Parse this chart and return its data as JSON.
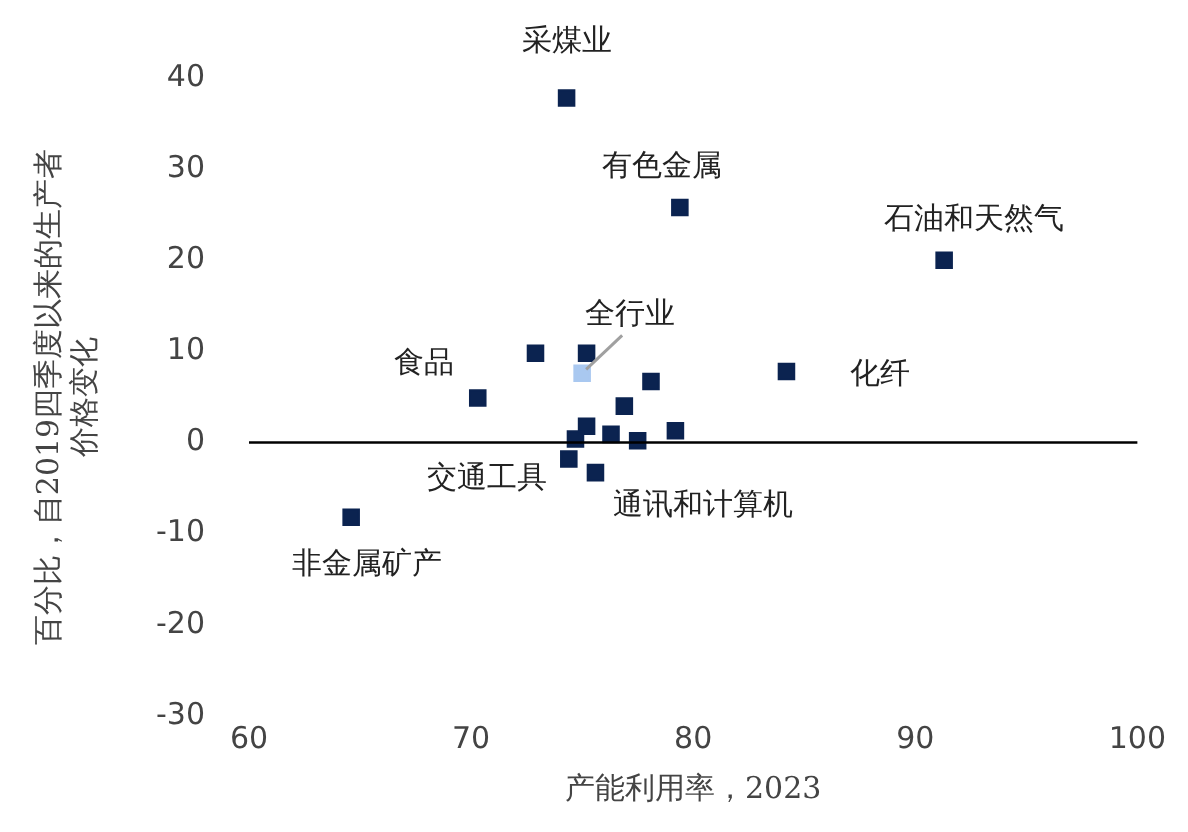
{
  "chart_data": {
    "type": "scatter",
    "xlabel": "产能利用率，2023",
    "ylabel": "百分比，自2019四季度以来的生产者价格变化",
    "xlim": [
      60,
      100
    ],
    "xticks": [
      60,
      70,
      80,
      90,
      100
    ],
    "ylim": [
      -30,
      40
    ],
    "yticks": [
      -30,
      -20,
      -10,
      0,
      10,
      20,
      30,
      40
    ],
    "grid": false,
    "legend": false,
    "marker": "square",
    "ref_lines": [
      {
        "axis": "y",
        "value": 0,
        "color": "#000000"
      }
    ],
    "series": [
      {
        "x": [
          74.3,
          79.4,
          91.3,
          84.2,
          75.0,
          72.9,
          75.2,
          70.3,
          78.1,
          76.9,
          75.2,
          74.7,
          76.3,
          77.5,
          79.2,
          74.4,
          75.6,
          64.6
        ],
        "values": [
          37.8,
          25.8,
          20,
          7.8,
          7.6,
          9.8,
          9.8,
          4.9,
          6.7,
          4.0,
          1.8,
          0.4,
          0.9,
          0.2,
          1.3,
          -1.8,
          -3.3,
          -8.2
        ],
        "colors": [
          "#0b2350",
          "#0b2350",
          "#0b2350",
          "#0b2350",
          "#a9c8f0",
          "#0b2350",
          "#0b2350",
          "#0b2350",
          "#0b2350",
          "#0b2350",
          "#0b2350",
          "#0b2350",
          "#0b2350",
          "#0b2350",
          "#0b2350",
          "#0b2350",
          "#0b2350",
          "#0b2350"
        ]
      }
    ],
    "annotations": [
      {
        "text": "采煤业",
        "x": 74.3,
        "y": 37.8
      },
      {
        "text": "有色金属",
        "x": 79.4,
        "y": 25.8
      },
      {
        "text": "石油和天然气",
        "x": 91.3,
        "y": 20
      },
      {
        "text": "化纤",
        "x": 84.2,
        "y": 7.8
      },
      {
        "text": "全行业",
        "x": 75.0,
        "y": 7.6
      },
      {
        "text": "食品",
        "x": 70.3,
        "y": 4.9
      },
      {
        "text": "交通工具",
        "x": 74.4,
        "y": -1.8
      },
      {
        "text": "通讯和计算机",
        "x": 75.6,
        "y": -3.3
      },
      {
        "text": "非金属矿产",
        "x": 64.6,
        "y": -8.2
      }
    ]
  }
}
